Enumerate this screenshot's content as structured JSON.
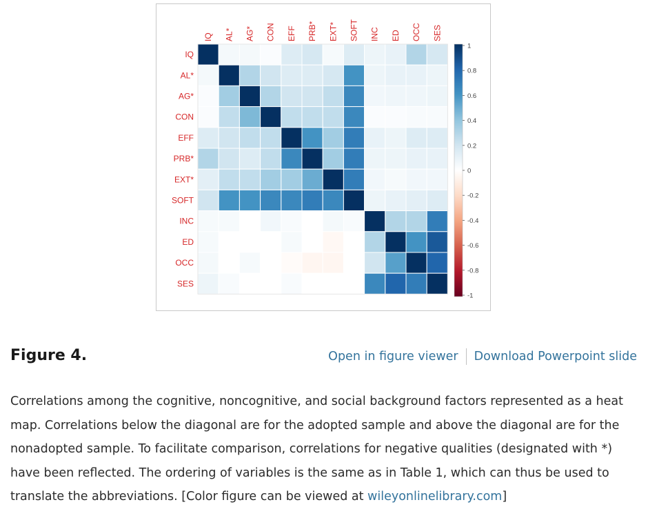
{
  "figure": {
    "heading": "Figure 4.",
    "open_viewer_label": "Open in figure viewer",
    "download_label": "Download Powerpoint slide",
    "caption_text": "Correlations among the cognitive, noncognitive, and social background factors represented as a heat map. Correlations below the diagonal are for the adopted sample and above the diagonal are for the nonadopted sample. To facilitate comparison, correlations for negative qualities (designated with *) have been reflected. The ordering of variables is the same as in Table 1, which can thus be used to translate the abbreviations. [Color figure can be viewed at ",
    "caption_link": "wileyonlinelibrary.com",
    "caption_end": "]"
  },
  "chart_data": {
    "type": "heatmap",
    "variables": [
      "IQ",
      "AL*",
      "AG*",
      "CON",
      "EFF",
      "PRB*",
      "EXT*",
      "SOFT",
      "INC",
      "ED",
      "OCC",
      "SES"
    ],
    "colorbar_ticks": [
      "1",
      "0.8",
      "0.6",
      "0.4",
      "0.2",
      "0",
      "-0.2",
      "-0.4",
      "-0.6",
      "-0.8",
      "-1"
    ],
    "range": [
      -1,
      1
    ],
    "colormap": {
      "negative": "#67001f",
      "zero": "#ffffff",
      "positive": "#053061"
    },
    "label_color": "#d62728",
    "values": [
      [
        1.0,
        0.05,
        0.05,
        0.02,
        0.15,
        0.18,
        0.04,
        0.15,
        0.08,
        0.1,
        0.3,
        0.18
      ],
      [
        0.05,
        1.0,
        0.3,
        0.2,
        0.15,
        0.15,
        0.18,
        0.6,
        0.08,
        0.1,
        0.1,
        0.08
      ],
      [
        0.02,
        0.35,
        1.0,
        0.3,
        0.2,
        0.2,
        0.25,
        0.65,
        0.06,
        0.07,
        0.07,
        0.08
      ],
      [
        0.02,
        0.25,
        0.45,
        1.0,
        0.25,
        0.25,
        0.25,
        0.65,
        0.02,
        0.02,
        0.03,
        0.03
      ],
      [
        0.15,
        0.2,
        0.25,
        0.25,
        1.0,
        0.6,
        0.35,
        0.7,
        0.1,
        0.08,
        0.15,
        0.15
      ],
      [
        0.3,
        0.2,
        0.15,
        0.25,
        0.65,
        1.0,
        0.35,
        0.7,
        0.08,
        0.08,
        0.1,
        0.1
      ],
      [
        0.12,
        0.25,
        0.25,
        0.35,
        0.35,
        0.5,
        1.0,
        0.7,
        0.06,
        0.04,
        0.06,
        0.06
      ],
      [
        0.2,
        0.6,
        0.6,
        0.65,
        0.65,
        0.7,
        0.65,
        1.0,
        0.08,
        0.1,
        0.12,
        0.15
      ],
      [
        0.04,
        0.04,
        0.0,
        0.06,
        0.03,
        0.0,
        0.05,
        0.03,
        1.0,
        0.3,
        0.3,
        0.7
      ],
      [
        0.04,
        0.0,
        0.0,
        0.0,
        0.04,
        0.0,
        -0.04,
        0.0,
        0.3,
        1.0,
        0.6,
        0.85
      ],
      [
        0.05,
        0.0,
        0.04,
        0.0,
        -0.02,
        -0.05,
        -0.05,
        0.0,
        0.2,
        0.55,
        1.0,
        0.8
      ],
      [
        0.08,
        0.03,
        0.0,
        0.0,
        0.03,
        0.0,
        0.0,
        0.0,
        0.65,
        0.8,
        0.7,
        1.0
      ]
    ]
  }
}
